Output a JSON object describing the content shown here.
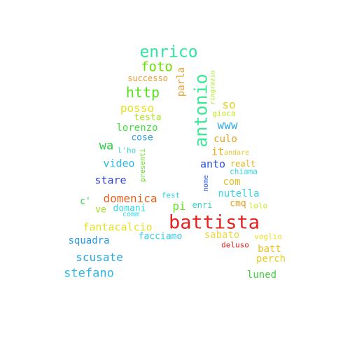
{
  "words": [
    {
      "text": "enrico",
      "color": "#2ee8a0"
    },
    {
      "text": "foto",
      "color": "#66e000"
    },
    {
      "text": "successo",
      "color": "#e89a30"
    },
    {
      "text": "parla",
      "color": "#e8a030"
    },
    {
      "text": "antonio",
      "color": "#3ae896"
    },
    {
      "text": "ringrazio",
      "color": "#a8e820"
    },
    {
      "text": "http",
      "color": "#55e020"
    },
    {
      "text": "so",
      "color": "#e8d020"
    },
    {
      "text": "posso",
      "color": "#e8e020"
    },
    {
      "text": "gioca",
      "color": "#c0e818"
    },
    {
      "text": "testa",
      "color": "#a8e020"
    },
    {
      "text": "www",
      "color": "#2ea8e8"
    },
    {
      "text": "lorenzo",
      "color": "#40e040"
    },
    {
      "text": "culo",
      "color": "#e8a020"
    },
    {
      "text": "cose",
      "color": "#2aa0e0"
    },
    {
      "text": "wa",
      "color": "#2ad040"
    },
    {
      "text": "l'ho",
      "color": "#30d8d0"
    },
    {
      "text": "presenti",
      "color": "#60e020"
    },
    {
      "text": "it",
      "color": "#e8b020"
    },
    {
      "text": "andare",
      "color": "#e8c830"
    },
    {
      "text": "video",
      "color": "#30b8e8"
    },
    {
      "text": "anto",
      "color": "#2a50e0"
    },
    {
      "text": "realt",
      "color": "#e8b020"
    },
    {
      "text": "chiama",
      "color": "#30d8e0"
    },
    {
      "text": "stare",
      "color": "#3040d8"
    },
    {
      "text": "com",
      "color": "#e8c020"
    },
    {
      "text": "nome",
      "color": "#2a60e8"
    },
    {
      "text": "domenica",
      "color": "#e86020"
    },
    {
      "text": "fest",
      "color": "#30d0e8"
    },
    {
      "text": "nutella",
      "color": "#30d8e8"
    },
    {
      "text": "c'",
      "color": "#30d040"
    },
    {
      "text": "cmq",
      "color": "#e8a020"
    },
    {
      "text": "lolo",
      "color": "#c8e820"
    },
    {
      "text": "pi",
      "color": "#60e020"
    },
    {
      "text": "enri",
      "color": "#30d8c8"
    },
    {
      "text": "ve",
      "color": "#a0e020"
    },
    {
      "text": "domani",
      "color": "#30d8e0"
    },
    {
      "text": "comm",
      "color": "#30d8e8"
    },
    {
      "text": "battista",
      "color": "#e82020"
    },
    {
      "text": "fantacalcio",
      "color": "#e8e020"
    },
    {
      "text": "voglio",
      "color": "#e8e020"
    },
    {
      "text": "squadra",
      "color": "#2a98e0"
    },
    {
      "text": "facciamo",
      "color": "#30c8e8"
    },
    {
      "text": "sabato",
      "color": "#e8d840"
    },
    {
      "text": "deluso",
      "color": "#e82020"
    },
    {
      "text": "batt",
      "color": "#e8c020"
    },
    {
      "text": "scusate",
      "color": "#2aa8e0"
    },
    {
      "text": "perch",
      "color": "#e8d020"
    },
    {
      "text": "stefano",
      "color": "#2ab8e8"
    },
    {
      "text": "luned",
      "color": "#40d040"
    }
  ]
}
